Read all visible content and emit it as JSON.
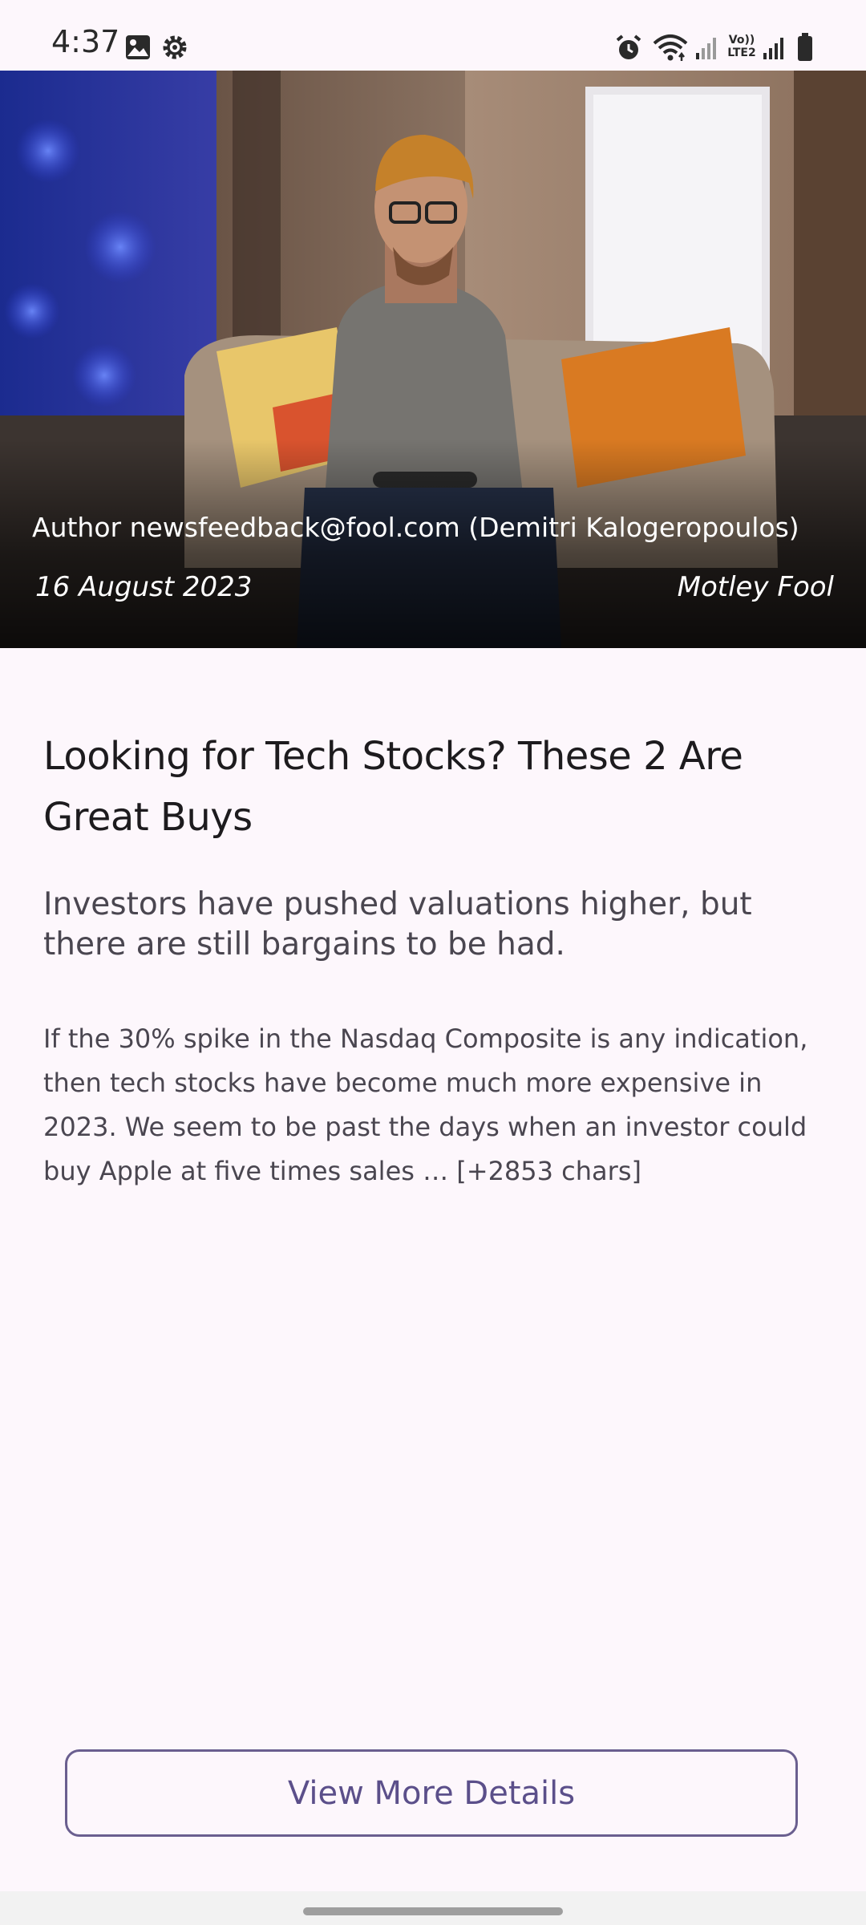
{
  "status_bar": {
    "time": "4:37",
    "left_icons": [
      "image-icon",
      "gear-icon"
    ],
    "right_icons": [
      "alarm-icon",
      "wifi-icon",
      "signal-icon",
      "volte-icon",
      "signal-icon",
      "battery-icon"
    ],
    "volte_line1": "Vo))",
    "volte_line2": "LTE2"
  },
  "article": {
    "author": "Author newsfeedback@fool.com (Demitri Kalogeropoulos)",
    "date": "16 August 2023",
    "source": "Motley Fool",
    "title": "Looking for Tech Stocks? These 2 Are Great Buys",
    "description": "Investors have pushed valuations higher, but there are still bargains to be had.",
    "content": "If the 30% spike in the Nasdaq Composite is any indication, then tech stocks have become much more expensive in 2023. We seem to be past the days when an investor could buy Apple at five times sales … [+2853 chars]"
  },
  "actions": {
    "view_more": "View More Details"
  },
  "colors": {
    "background": "#fdf7fc",
    "accent": "#5b4f8a",
    "title": "#1d1b1e",
    "body": "#4a4650"
  }
}
